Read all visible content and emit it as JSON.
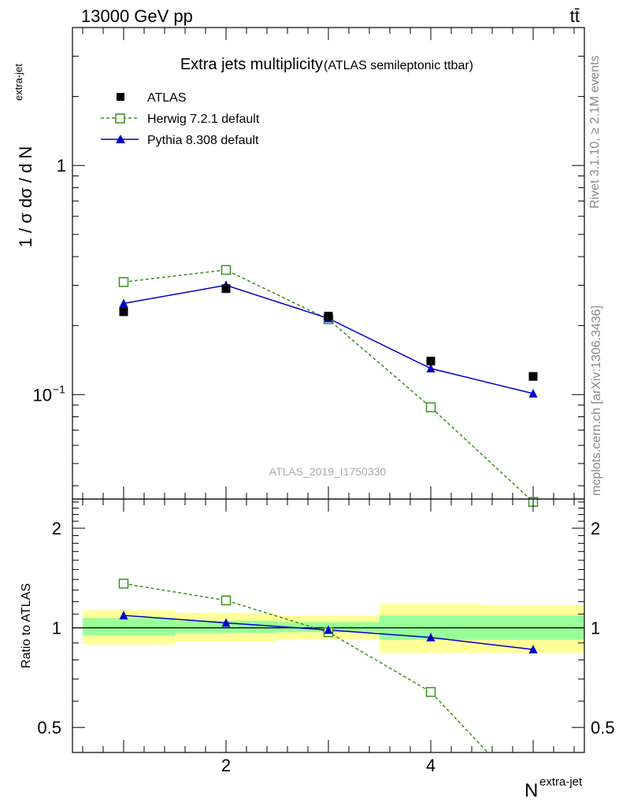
{
  "header": {
    "left": "13000 GeV pp",
    "right": "tt̄"
  },
  "side_text": {
    "rivet": "Rivet 3.1.10, ≥ 2.1M events",
    "mcplots": "mcplots.cern.ch [arXiv:1306.3436]"
  },
  "watermark": "ATLAS_2019_I1750330",
  "colors": {
    "atlas": "#000000",
    "herwig": "#3a8f1e",
    "pythia": "#0000cc",
    "band_outer": "#ffff99",
    "band_inner": "#99ff99"
  },
  "chart_data": [
    {
      "type": "line",
      "title": "Extra jets multiplicity",
      "subtitle": "(ATLAS semileptonic ttbar)",
      "xlabel": "N",
      "xlabel_sup": "extra-jet",
      "ylabel": "1 / σ dσ / d N",
      "ylabel_sup": "extra-jet",
      "yscale": "log",
      "xlim": [
        0.5,
        5.5
      ],
      "ylim": [
        0.035,
        4.0
      ],
      "y_tick_labels": [
        {
          "value": 1,
          "label": "1"
        },
        {
          "value": 0.1,
          "label": "10",
          "sup": "−1"
        }
      ],
      "legend_position": "top-left",
      "series": [
        {
          "name": "ATLAS",
          "marker": "filled-square",
          "line": "none",
          "x": [
            1,
            2,
            3,
            4,
            5
          ],
          "y": [
            0.23,
            0.29,
            0.22,
            0.14,
            0.12
          ]
        },
        {
          "name": "Herwig 7.2.1 default",
          "marker": "open-square",
          "line": "dashed",
          "x": [
            1,
            2,
            3,
            4,
            5
          ],
          "y": [
            0.31,
            0.35,
            0.213,
            0.088,
            0.034
          ]
        },
        {
          "name": "Pythia 8.308 default",
          "marker": "filled-triangle",
          "line": "solid",
          "x": [
            1,
            2,
            3,
            4,
            5
          ],
          "y": [
            0.25,
            0.3,
            0.215,
            0.13,
            0.101
          ]
        }
      ]
    },
    {
      "type": "line",
      "ylabel": "Ratio to ATLAS",
      "xlabel": "N",
      "xlabel_sup": "extra-jet",
      "yscale": "log",
      "xlim": [
        0.5,
        5.5
      ],
      "ylim": [
        0.42,
        2.45
      ],
      "x_tick_labels": [
        {
          "value": 2,
          "label": "2"
        },
        {
          "value": 4,
          "label": "4"
        }
      ],
      "y_tick_labels": [
        {
          "value": 0.5,
          "label": "0.5"
        },
        {
          "value": 1,
          "label": "1"
        },
        {
          "value": 2,
          "label": "2"
        }
      ],
      "reference_line": 1,
      "uncertainty_bands": [
        {
          "x": [
            0.6,
            1.5
          ],
          "outer": [
            0.89,
            1.13
          ],
          "inner": [
            0.95,
            1.07
          ]
        },
        {
          "x": [
            1.5,
            2.5
          ],
          "outer": [
            0.91,
            1.11
          ],
          "inner": [
            0.965,
            1.05
          ]
        },
        {
          "x": [
            2.5,
            3.5
          ],
          "outer": [
            0.925,
            1.09
          ],
          "inner": [
            0.97,
            1.04
          ]
        },
        {
          "x": [
            3.5,
            4.5
          ],
          "outer": [
            0.84,
            1.18
          ],
          "inner": [
            0.92,
            1.09
          ]
        },
        {
          "x": [
            4.5,
            5.5
          ],
          "outer": [
            0.84,
            1.17
          ],
          "inner": [
            0.92,
            1.09
          ]
        }
      ],
      "series": [
        {
          "name": "Herwig 7.2.1 default",
          "marker": "open-square",
          "line": "dashed",
          "x": [
            1,
            2,
            3,
            4,
            5
          ],
          "y": [
            1.36,
            1.21,
            0.97,
            0.64,
            0.3
          ]
        },
        {
          "name": "Pythia 8.308 default",
          "marker": "filled-triangle",
          "line": "solid",
          "x": [
            1,
            2,
            3,
            4,
            5
          ],
          "y": [
            1.09,
            1.035,
            0.985,
            0.935,
            0.86
          ]
        }
      ]
    }
  ]
}
